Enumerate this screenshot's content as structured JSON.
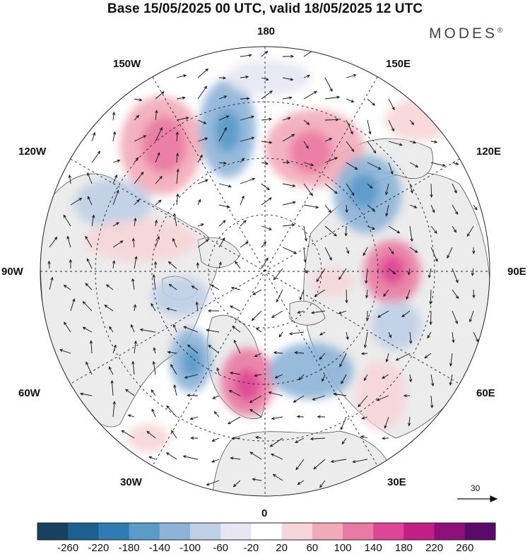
{
  "title": "Base 15/05/2025 00 UTC, valid 18/05/2025 12 UTC",
  "brand": "MODES",
  "brand_mark": "®",
  "longitude_labels": {
    "top": "180",
    "top_left": "150W",
    "top_right": "150E",
    "upper_left": "120W",
    "upper_right": "120E",
    "left": "90W",
    "right": "90E",
    "lower_left": "60W",
    "lower_right": "60E",
    "bottom_left": "30W",
    "bottom_right": "30E",
    "bottom": "0"
  },
  "vector_scale": {
    "label": "30",
    "icon": "arrow-right-icon"
  },
  "colorbar": {
    "ticks": [
      "-260",
      "-220",
      "-180",
      "-140",
      "-100",
      "-60",
      "-20",
      "20",
      "60",
      "100",
      "140",
      "180",
      "220",
      "260"
    ],
    "colors": [
      "#17415e",
      "#1d5f8e",
      "#2e7cb3",
      "#5a9bc9",
      "#8db4d8",
      "#bfcfe6",
      "#e7e7f2",
      "#ffffff",
      "#f7d5d8",
      "#f2aab8",
      "#ea7aa3",
      "#de4695",
      "#c21f85",
      "#8f0e7a",
      "#5a0a6b"
    ]
  },
  "map_colors": {
    "land": "#ececec",
    "ocean": "#ffffff",
    "border": "#333333"
  }
}
